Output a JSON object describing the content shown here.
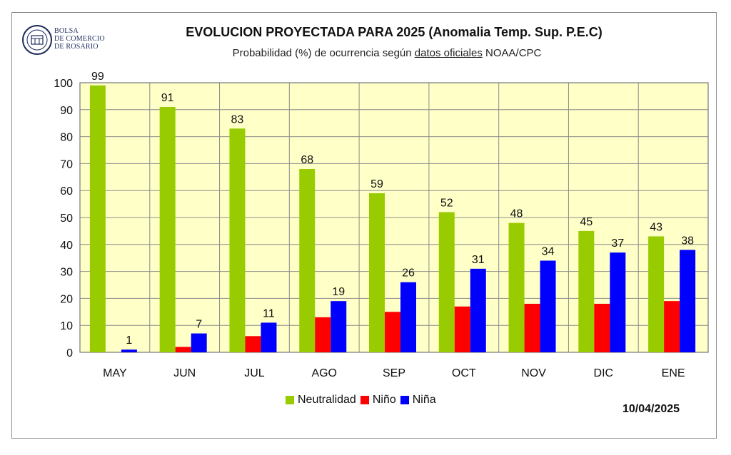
{
  "header": {
    "logo_lines": [
      "BOLSA",
      "DE COMERCIO",
      "DE ROSARIO"
    ],
    "title": "EVOLUCION PROYECTADA PARA 2025 (Anomalia Temp. Sup. P.E.C)",
    "subtitle_pre": "Probabilidad (%) de ocurrencia según ",
    "subtitle_link": "datos oficiales",
    "subtitle_post": " NOAA/CPC",
    "date": "10/04/2025"
  },
  "colors": {
    "plot_bg": "#ffffc8",
    "grid": "#8c8c8c",
    "neutralidad": "#99cc00",
    "nino": "#ff0000",
    "nina": "#0000ff"
  },
  "chart_data": {
    "type": "bar",
    "categories": [
      "MAY",
      "JUN",
      "JUL",
      "AGO",
      "SEP",
      "OCT",
      "NOV",
      "DIC",
      "ENE"
    ],
    "series": [
      {
        "name": "Neutralidad",
        "values": [
          99,
          91,
          83,
          68,
          59,
          52,
          48,
          45,
          43
        ],
        "labeled": true
      },
      {
        "name": "Niño",
        "values": [
          0,
          2,
          6,
          13,
          15,
          17,
          18,
          18,
          19
        ],
        "labeled": false
      },
      {
        "name": "Niña",
        "values": [
          1,
          7,
          11,
          19,
          26,
          31,
          34,
          37,
          38
        ],
        "labeled": true
      }
    ],
    "ylim": [
      0,
      100
    ],
    "yticks": [
      0,
      10,
      20,
      30,
      40,
      50,
      60,
      70,
      80,
      90,
      100
    ],
    "grid": true,
    "legend": "bottom"
  }
}
